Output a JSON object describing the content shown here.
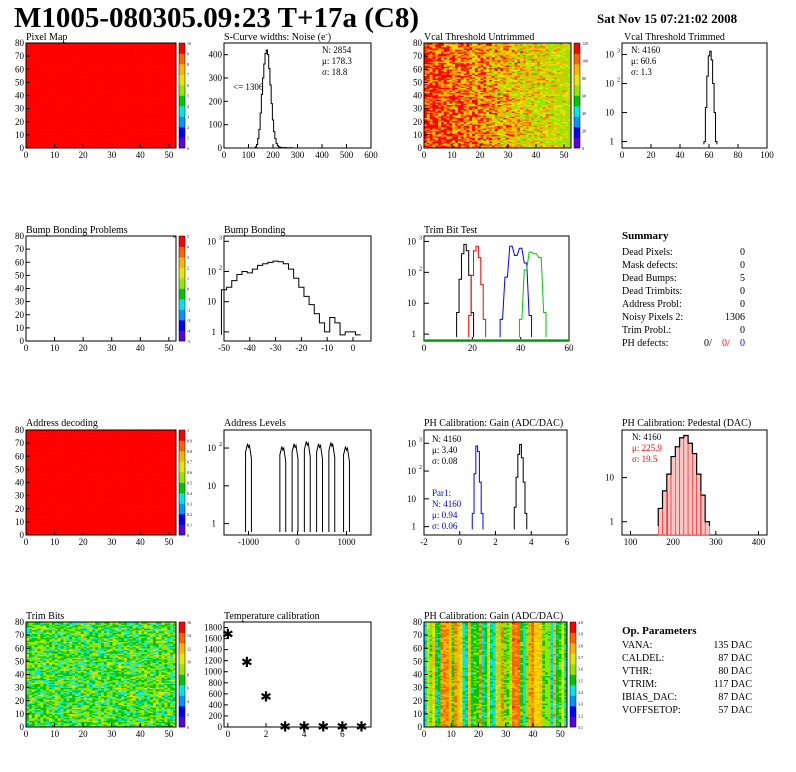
{
  "header": {
    "title": "M1005-080305.09:23 T+17a (C8)",
    "date": "Sat Nov 15 07:21:02 2008"
  },
  "colors": {
    "red": "#ff0000",
    "black": "#000000",
    "blue": "#0000ff",
    "green": "#00c800",
    "palette": [
      "#5a00e6",
      "#0000ff",
      "#0096ff",
      "#00e6e6",
      "#00c800",
      "#96e600",
      "#e6e600",
      "#ffb400",
      "#ff6400",
      "#ff0000"
    ]
  },
  "panels": {
    "pixel_map": {
      "title": "Pixel Map",
      "xticks": [
        "0",
        "10",
        "20",
        "30",
        "40",
        "50"
      ],
      "yticks": [
        "0",
        "10",
        "20",
        "30",
        "40",
        "50",
        "60",
        "70",
        "80"
      ],
      "zticks": [
        "10",
        "9",
        "8",
        "7",
        "6",
        "5",
        "4",
        "3",
        "2",
        "1",
        "0"
      ]
    },
    "scurve": {
      "title": "S-Curve widths: Noise (e",
      "title_sup": "-",
      "title_end": ")",
      "stats": [
        "N: 2854",
        "μ: 178.3",
        "σ: 18.8"
      ],
      "note": "<= 1306",
      "xticks": [
        "0",
        "100",
        "200",
        "300",
        "400",
        "500",
        "600"
      ],
      "yticks": [
        "0",
        "100",
        "200",
        "300",
        "400"
      ]
    },
    "vcal_untrimmed": {
      "title": "Vcal Threshold Untrimmed",
      "xticks": [
        "0",
        "10",
        "20",
        "30",
        "40",
        "50"
      ],
      "yticks": [
        "0",
        "10",
        "20",
        "30",
        "40",
        "50",
        "60",
        "70",
        "80"
      ],
      "zticks": [
        "120",
        "100",
        "80",
        "60",
        "40",
        "20",
        "0"
      ]
    },
    "vcal_trimmed": {
      "title": "Vcal Threshold Trimmed",
      "stats": [
        "N: 4160",
        "μ: 60.6",
        "σ:  1.3"
      ],
      "xticks": [
        "0",
        "20",
        "40",
        "60",
        "80",
        "100"
      ],
      "yticks": [
        "1",
        "10",
        "10",
        "10"
      ],
      "ysup": [
        "",
        "",
        "2",
        "3"
      ]
    },
    "bump_problems": {
      "title": "Bump Bonding Problems",
      "xticks": [
        "0",
        "10",
        "20",
        "30",
        "40",
        "50"
      ],
      "yticks": [
        "0",
        "10",
        "20",
        "30",
        "40",
        "50",
        "60",
        "70",
        "80"
      ],
      "zticks": [
        "5",
        "4",
        "3",
        "2",
        "1",
        "0",
        "-1",
        "-2",
        "-3",
        "-4",
        "-5"
      ]
    },
    "bump_bonding": {
      "title": "Bump Bonding",
      "xticks": [
        "-50",
        "-40",
        "-30",
        "-20",
        "-10",
        "0"
      ],
      "yticks": [
        "1",
        "10",
        "10",
        "10"
      ],
      "ysup": [
        "",
        "",
        "2",
        "3"
      ]
    },
    "trim_bit": {
      "title": "Trim Bit Test",
      "xticks": [
        "0",
        "20",
        "40",
        "60"
      ],
      "yticks": [
        "1",
        "10",
        "10",
        "10"
      ],
      "ysup": [
        "",
        "",
        "2",
        "3"
      ]
    },
    "summary": {
      "heading": "Summary",
      "rows": [
        {
          "label": "Dead Pixels:",
          "value": "0"
        },
        {
          "label": "Mask defects:",
          "value": "0"
        },
        {
          "label": "Dead Bumps:",
          "value": "5"
        },
        {
          "label": "Dead Trimbits:",
          "value": "0"
        },
        {
          "label": "Address Probl:",
          "value": "0"
        },
        {
          "label": "Noisy Pixels 2:",
          "value": "1306"
        },
        {
          "label": "Trim Probl.:",
          "value": "0"
        }
      ],
      "ph_label": "PH defects:",
      "ph_values": [
        "0/",
        "0/",
        "0"
      ]
    },
    "address_decoding": {
      "title": "Address decoding",
      "xticks": [
        "0",
        "10",
        "20",
        "30",
        "40",
        "50"
      ],
      "yticks": [
        "0",
        "10",
        "20",
        "30",
        "40",
        "50",
        "60",
        "70",
        "80"
      ],
      "zticks": [
        "1",
        "0.9",
        "0.8",
        "0.7",
        "0.6",
        "0.5",
        "0.4",
        "0.3",
        "0.2",
        "0.1",
        "0"
      ]
    },
    "address_levels": {
      "title": "Address Levels",
      "xticks": [
        "-1000",
        "0",
        "1000"
      ],
      "yticks": [
        "1",
        "10",
        "10"
      ],
      "ysup": [
        "",
        "",
        "2"
      ]
    },
    "ph_gain": {
      "title": "PH Calibration: Gain (ADC/DAC)",
      "stats": [
        "N: 4160",
        "μ: 3.40",
        "σ: 0.08"
      ],
      "par_label": "Par1:",
      "par_stats": [
        "N: 4160",
        "μ: 0.94",
        "σ: 0.06"
      ],
      "xticks": [
        "-2",
        "0",
        "2",
        "4",
        "6"
      ],
      "yticks": [
        "1",
        "10",
        "10",
        "10"
      ],
      "ysup": [
        "",
        "",
        "2",
        "3"
      ]
    },
    "ph_pedestal": {
      "title": "PH Calibration: Pedestal (DAC)",
      "stats": [
        "N: 4160",
        "μ: 225.9",
        "σ: 19.5"
      ],
      "xticks": [
        "100",
        "200",
        "300",
        "400"
      ],
      "yticks": [
        "1",
        "10"
      ]
    },
    "trim_bits": {
      "title": "Trim Bits",
      "xticks": [
        "0",
        "10",
        "20",
        "30",
        "40",
        "50"
      ],
      "yticks": [
        "0",
        "10",
        "20",
        "30",
        "40",
        "50",
        "60",
        "70",
        "80"
      ],
      "zticks": [
        "16",
        "14",
        "12",
        "10",
        "8",
        "6",
        "4",
        "2",
        "0"
      ]
    },
    "temperature": {
      "title": "Temperature calibration",
      "xticks": [
        "0",
        "2",
        "4",
        "6"
      ],
      "yticks": [
        "0",
        "200",
        "400",
        "600",
        "800",
        "1000",
        "1200",
        "1400",
        "1600",
        "1800"
      ]
    },
    "ph_gain_map": {
      "title": "PH Calibration: Gain (ADC/DAC)",
      "xticks": [
        "0",
        "10",
        "20",
        "30",
        "40",
        "50"
      ],
      "yticks": [
        "0",
        "10",
        "20",
        "30",
        "40",
        "50",
        "60",
        "70",
        "80"
      ],
      "zticks": [
        "4.0",
        "3.9",
        "3.8",
        "3.7",
        "3.6",
        "3.5",
        "3.4",
        "3.3",
        "3.2",
        "3.1"
      ]
    },
    "op_params": {
      "heading": "Op. Parameters",
      "rows": [
        {
          "label": "VANA:",
          "value": "135 DAC"
        },
        {
          "label": "CALDEL:",
          "value": "87 DAC"
        },
        {
          "label": "VTHR:",
          "value": "80 DAC"
        },
        {
          "label": "VTRIM:",
          "value": "117 DAC"
        },
        {
          "label": "IBIAS_DAC:",
          "value": "87 DAC"
        },
        {
          "label": "VOFFSETOP:",
          "value": "57 DAC"
        }
      ]
    }
  },
  "chart_data": [
    {
      "type": "heatmap",
      "title": "Pixel Map",
      "x_range": [
        0,
        52
      ],
      "y_range": [
        0,
        80
      ],
      "z_range": [
        0,
        10
      ],
      "uniform_value": 10
    },
    {
      "type": "bar",
      "title": "S-Curve widths: Noise (e-)",
      "x_range": [
        0,
        600
      ],
      "ylim": [
        0,
        450
      ],
      "stats": {
        "N": 2854,
        "mean": 178.3,
        "rms": 18.8
      },
      "underflow_note": "<= 1306",
      "x": [
        125,
        130,
        135,
        140,
        145,
        150,
        155,
        160,
        165,
        170,
        175,
        180,
        185,
        190,
        195,
        200,
        205,
        210,
        215,
        220,
        225,
        230,
        235,
        240,
        245,
        250,
        255,
        260,
        265,
        270,
        275,
        280,
        285,
        290
      ],
      "values": [
        0,
        5,
        15,
        40,
        80,
        150,
        230,
        300,
        360,
        405,
        420,
        400,
        340,
        270,
        190,
        120,
        70,
        40,
        20,
        10,
        5,
        3,
        2,
        1,
        1,
        2,
        1,
        1,
        0,
        1,
        0,
        1,
        0,
        0
      ]
    },
    {
      "type": "heatmap",
      "title": "Vcal Threshold Untrimmed",
      "x_range": [
        0,
        52
      ],
      "y_range": [
        0,
        80
      ],
      "z_range": [
        0,
        130
      ],
      "trend": "values higher at low column, decreasing toward column 52"
    },
    {
      "type": "bar",
      "title": "Vcal Threshold Trimmed",
      "log_y": true,
      "x_range": [
        0,
        100
      ],
      "ylim": [
        1,
        2000
      ],
      "stats": {
        "N": 4160,
        "mean": 60.6,
        "rms": 1.3
      },
      "x": [
        57,
        58,
        59,
        60,
        61,
        62,
        63,
        64,
        65
      ],
      "values": [
        1,
        15,
        180,
        900,
        1300,
        650,
        100,
        10,
        1
      ]
    },
    {
      "type": "heatmap",
      "title": "Bump Bonding Problems",
      "x_range": [
        0,
        52
      ],
      "y_range": [
        0,
        80
      ],
      "z_range": [
        -5,
        5
      ],
      "highlighted_cells": [
        [
          51,
          79
        ]
      ]
    },
    {
      "type": "bar",
      "title": "Bump Bonding",
      "log_y": true,
      "x_range": [
        -50,
        5
      ],
      "ylim": [
        0.5,
        1500
      ],
      "x": [
        -50,
        -48,
        -46,
        -44,
        -42,
        -40,
        -38,
        -36,
        -34,
        -32,
        -30,
        -28,
        -26,
        -24,
        -22,
        -20,
        -18,
        -16,
        -14,
        -12,
        -10,
        -8,
        -6,
        -4,
        -2,
        0,
        2
      ],
      "values": [
        25,
        30,
        50,
        80,
        100,
        90,
        120,
        160,
        180,
        200,
        220,
        210,
        180,
        120,
        60,
        30,
        15,
        8,
        4,
        2,
        1,
        3,
        2,
        0,
        1,
        1,
        0
      ]
    },
    {
      "type": "line",
      "title": "Trim Bit Test",
      "log_y": true,
      "x_range": [
        0,
        60
      ],
      "ylim": [
        1,
        1500
      ],
      "series": [
        {
          "color": "black",
          "x": [
            14,
            15,
            16,
            17,
            18,
            19,
            20
          ],
          "values": [
            5,
            60,
            400,
            800,
            500,
            80,
            5
          ]
        },
        {
          "color": "red",
          "x": [
            19,
            20,
            21,
            22,
            23,
            24,
            25
          ],
          "values": [
            4,
            80,
            500,
            700,
            300,
            40,
            3
          ]
        },
        {
          "color": "blue",
          "x": [
            32,
            34,
            36,
            38,
            40,
            42,
            44
          ],
          "values": [
            3,
            70,
            700,
            350,
            600,
            200,
            4
          ]
        },
        {
          "color": "green",
          "x": [
            40,
            42,
            44,
            46,
            48,
            50
          ],
          "values": [
            3,
            120,
            450,
            400,
            300,
            5
          ]
        }
      ]
    },
    {
      "type": "heatmap",
      "title": "Address decoding",
      "x_range": [
        0,
        52
      ],
      "y_range": [
        0,
        80
      ],
      "z_range": [
        0,
        1
      ],
      "uniform_value": 1
    },
    {
      "type": "bar",
      "title": "Address Levels",
      "log_y": true,
      "x_range": [
        -1500,
        1500
      ],
      "ylim": [
        0.5,
        300
      ],
      "peak_centers": [
        -1000,
        -300,
        -50,
        200,
        450,
        700,
        1000
      ],
      "peak_heights": [
        130,
        110,
        130,
        150,
        130,
        140,
        110
      ]
    },
    {
      "type": "line",
      "title": "PH Calibration: Gain (ADC/DAC)",
      "log_y": true,
      "x_range": [
        -2,
        6
      ],
      "ylim": [
        0.5,
        3000
      ],
      "series": [
        {
          "name": "",
          "color": "black",
          "stats": {
            "N": 4160,
            "mean": 3.4,
            "rms": 0.08
          },
          "x": [
            3.1,
            3.2,
            3.3,
            3.4,
            3.5,
            3.6,
            3.7
          ],
          "values": [
            5,
            60,
            400,
            900,
            300,
            40,
            3
          ]
        },
        {
          "name": "Par1",
          "color": "blue",
          "stats": {
            "N": 4160,
            "mean": 0.94,
            "rms": 0.06
          },
          "x": [
            0.75,
            0.85,
            0.95,
            1.05,
            1.15,
            1.25
          ],
          "values": [
            3,
            80,
            800,
            500,
            40,
            3
          ]
        }
      ]
    },
    {
      "type": "bar",
      "title": "PH Calibration: Pedestal (DAC)",
      "log_y": true,
      "x_range": [
        80,
        420
      ],
      "ylim": [
        0.5,
        120
      ],
      "stats": {
        "N": 4160,
        "mean": 225.9,
        "rms": 19.5
      },
      "x": [
        170,
        180,
        190,
        200,
        210,
        220,
        230,
        240,
        250,
        260,
        270,
        280
      ],
      "values": [
        2,
        5,
        12,
        30,
        50,
        80,
        90,
        60,
        35,
        12,
        4,
        1
      ]
    },
    {
      "type": "heatmap",
      "title": "Trim Bits",
      "x_range": [
        0,
        52
      ],
      "y_range": [
        0,
        80
      ],
      "z_range": [
        0,
        16
      ]
    },
    {
      "type": "scatter",
      "title": "Temperature calibration",
      "x_range": [
        -0.2,
        7.5
      ],
      "ylim": [
        0,
        1900
      ],
      "x": [
        0,
        1,
        2,
        3,
        4,
        5,
        6,
        7
      ],
      "values": [
        1680,
        1180,
        550,
        5,
        5,
        5,
        5,
        5
      ]
    },
    {
      "type": "heatmap",
      "title": "PH Calibration: Gain (ADC/DAC)",
      "x_range": [
        0,
        52
      ],
      "y_range": [
        0,
        80
      ],
      "z_range": [
        3.0,
        4.1
      ],
      "pattern": "vertical column stripes"
    }
  ]
}
